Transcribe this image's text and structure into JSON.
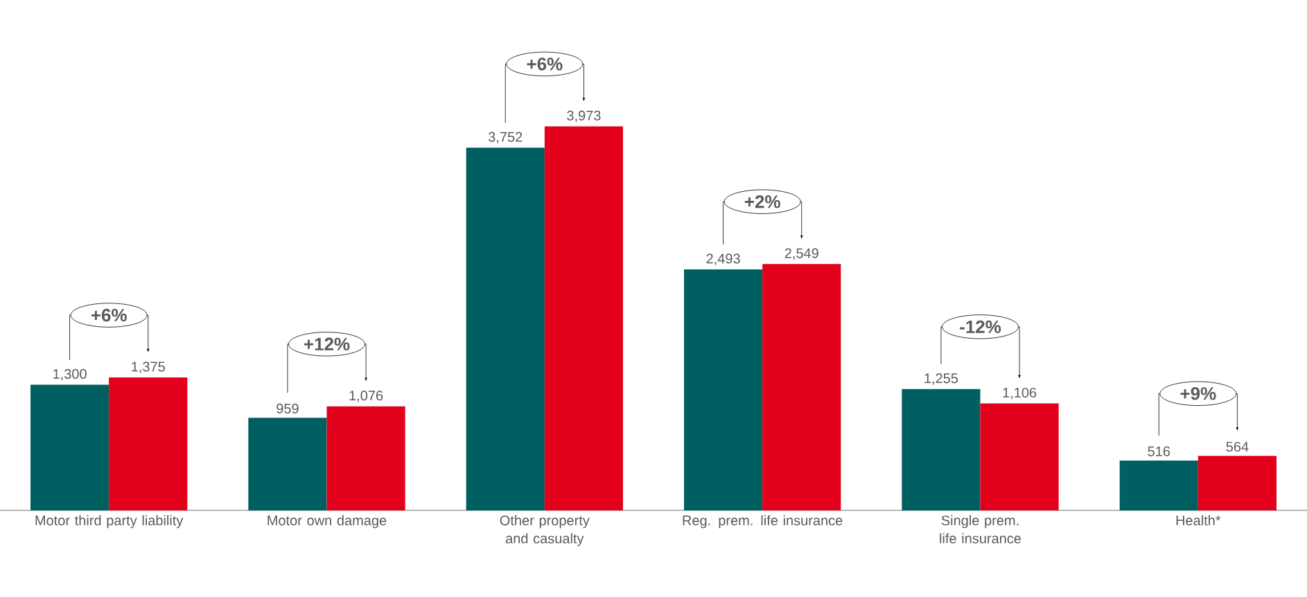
{
  "chart_data": {
    "type": "bar",
    "categories": [
      "Motor third party liability",
      "Motor own damage",
      "Other property and casualty",
      "Reg. prem. life insurance",
      "Single prem. life insurance",
      "Health*"
    ],
    "series": [
      {
        "color": "#005f61",
        "values": [
          1300,
          959,
          3752,
          2493,
          1255,
          516
        ],
        "value_labels": [
          "1,300",
          "959",
          "3,752",
          "2,493",
          "1,255",
          "516"
        ]
      },
      {
        "color": "#e2001a",
        "values": [
          1375,
          1076,
          3973,
          2549,
          1106,
          564
        ],
        "value_labels": [
          "1,375",
          "1,076",
          "3,973",
          "2,549",
          "1,106",
          "564"
        ]
      }
    ],
    "annotations": [
      "+6%",
      "+12%",
      "+6%",
      "+2%",
      "-12%",
      "+9%"
    ]
  }
}
